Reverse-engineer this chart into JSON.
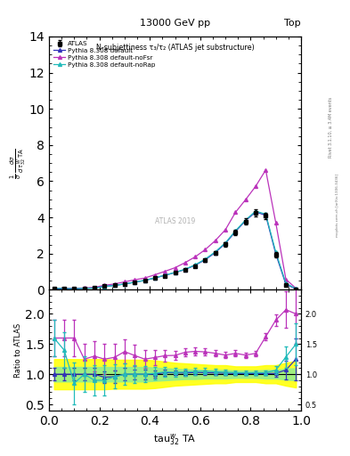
{
  "title_top": "13000 GeV pp",
  "title_right": "Top",
  "plot_title": "N-subjettiness τ₃/τ₂ (ATLAS jet substructure)",
  "xlabel": "tauᵂ₃₂ TA",
  "ylabel_ratio": "Ratio to ATLAS",
  "right_label": "Rivet 3.1.10, ≥ 3.4M events",
  "right_label2": "mcplots.cern.ch [arXiv:1306.3436]",
  "watermark": "ATLAS 2019",
  "x_values": [
    0.02,
    0.06,
    0.1,
    0.14,
    0.18,
    0.22,
    0.26,
    0.3,
    0.34,
    0.38,
    0.42,
    0.46,
    0.5,
    0.54,
    0.58,
    0.62,
    0.66,
    0.7,
    0.74,
    0.78,
    0.82,
    0.86,
    0.9,
    0.94,
    0.98
  ],
  "atlas_y": [
    0.05,
    0.05,
    0.05,
    0.08,
    0.1,
    0.2,
    0.25,
    0.32,
    0.42,
    0.52,
    0.65,
    0.78,
    0.93,
    1.1,
    1.32,
    1.62,
    2.02,
    2.52,
    3.18,
    3.78,
    4.25,
    4.08,
    1.95,
    0.28,
    0.04
  ],
  "atlas_yerr": [
    0.02,
    0.02,
    0.02,
    0.02,
    0.03,
    0.04,
    0.04,
    0.04,
    0.04,
    0.04,
    0.05,
    0.05,
    0.05,
    0.06,
    0.07,
    0.08,
    0.1,
    0.12,
    0.14,
    0.16,
    0.18,
    0.18,
    0.14,
    0.08,
    0.02
  ],
  "py_default_y": [
    0.05,
    0.05,
    0.05,
    0.08,
    0.1,
    0.19,
    0.24,
    0.32,
    0.42,
    0.52,
    0.65,
    0.8,
    0.95,
    1.12,
    1.36,
    1.66,
    2.06,
    2.56,
    3.22,
    3.82,
    4.3,
    4.12,
    1.98,
    0.3,
    0.05
  ],
  "py_noFsr_y": [
    0.08,
    0.08,
    0.08,
    0.1,
    0.13,
    0.25,
    0.32,
    0.44,
    0.55,
    0.65,
    0.83,
    1.02,
    1.22,
    1.5,
    1.82,
    2.22,
    2.72,
    3.32,
    4.28,
    4.98,
    5.72,
    6.62,
    3.7,
    0.58,
    0.08
  ],
  "py_noRap_y": [
    0.08,
    0.07,
    0.06,
    0.08,
    0.09,
    0.18,
    0.24,
    0.32,
    0.42,
    0.52,
    0.66,
    0.81,
    0.96,
    1.14,
    1.38,
    1.7,
    2.1,
    2.6,
    3.26,
    3.86,
    4.35,
    4.18,
    2.08,
    0.36,
    0.06
  ],
  "py_default_color": "#3333bb",
  "py_noFsr_color": "#bb33bb",
  "py_noRap_color": "#22bbbb",
  "atlas_color": "#000000",
  "ratio_default_y": [
    1.0,
    1.0,
    1.0,
    1.0,
    1.0,
    0.95,
    0.96,
    1.0,
    1.0,
    1.0,
    1.0,
    1.026,
    1.022,
    1.018,
    1.03,
    1.025,
    1.02,
    1.016,
    1.013,
    1.011,
    1.012,
    1.01,
    1.015,
    1.07,
    1.25
  ],
  "ratio_noFsr_y": [
    1.6,
    1.6,
    1.6,
    1.25,
    1.3,
    1.25,
    1.28,
    1.375,
    1.31,
    1.25,
    1.277,
    1.308,
    1.312,
    1.364,
    1.379,
    1.37,
    1.347,
    1.317,
    1.346,
    1.317,
    1.346,
    1.622,
    1.897,
    2.07,
    2.0
  ],
  "ratio_noRap_y": [
    1.6,
    1.4,
    0.85,
    1.0,
    0.9,
    0.9,
    0.96,
    1.0,
    1.0,
    1.0,
    1.015,
    1.038,
    1.032,
    1.036,
    1.045,
    1.049,
    1.04,
    1.032,
    1.025,
    1.021,
    1.024,
    1.024,
    1.067,
    1.286,
    1.5
  ],
  "ratio_default_yerr": [
    0.1,
    0.1,
    0.1,
    0.1,
    0.1,
    0.1,
    0.1,
    0.1,
    0.08,
    0.08,
    0.06,
    0.05,
    0.04,
    0.04,
    0.035,
    0.033,
    0.03,
    0.028,
    0.026,
    0.025,
    0.025,
    0.028,
    0.05,
    0.15,
    0.35
  ],
  "ratio_noFsr_yerr": [
    0.3,
    0.3,
    0.3,
    0.25,
    0.25,
    0.25,
    0.22,
    0.2,
    0.18,
    0.15,
    0.12,
    0.1,
    0.08,
    0.07,
    0.065,
    0.058,
    0.055,
    0.052,
    0.048,
    0.045,
    0.045,
    0.055,
    0.1,
    0.3,
    0.5
  ],
  "ratio_noRap_yerr": [
    0.3,
    0.3,
    0.35,
    0.3,
    0.25,
    0.25,
    0.2,
    0.18,
    0.15,
    0.13,
    0.1,
    0.08,
    0.07,
    0.062,
    0.058,
    0.052,
    0.05,
    0.046,
    0.042,
    0.04,
    0.04,
    0.042,
    0.065,
    0.18,
    0.35
  ],
  "green_band_lo": [
    0.88,
    0.88,
    0.88,
    0.88,
    0.88,
    0.88,
    0.88,
    0.88,
    0.88,
    0.88,
    0.89,
    0.9,
    0.91,
    0.92,
    0.92,
    0.93,
    0.93,
    0.93,
    0.94,
    0.94,
    0.94,
    0.93,
    0.93,
    0.91,
    0.9
  ],
  "green_band_hi": [
    1.12,
    1.12,
    1.12,
    1.12,
    1.12,
    1.12,
    1.12,
    1.12,
    1.12,
    1.12,
    1.11,
    1.1,
    1.09,
    1.08,
    1.08,
    1.07,
    1.07,
    1.07,
    1.06,
    1.06,
    1.06,
    1.07,
    1.07,
    1.09,
    1.1
  ],
  "yellow_band_lo": [
    0.75,
    0.75,
    0.75,
    0.75,
    0.75,
    0.75,
    0.76,
    0.76,
    0.76,
    0.76,
    0.77,
    0.79,
    0.81,
    0.82,
    0.83,
    0.84,
    0.85,
    0.85,
    0.87,
    0.87,
    0.87,
    0.85,
    0.85,
    0.81,
    0.78
  ],
  "yellow_band_hi": [
    1.25,
    1.25,
    1.25,
    1.25,
    1.25,
    1.25,
    1.24,
    1.24,
    1.24,
    1.24,
    1.23,
    1.21,
    1.19,
    1.18,
    1.17,
    1.16,
    1.15,
    1.15,
    1.13,
    1.13,
    1.13,
    1.15,
    1.15,
    1.19,
    1.22
  ],
  "main_ylim": [
    0,
    14
  ],
  "ratio_ylim": [
    0.4,
    2.4
  ],
  "xlim": [
    0.0,
    1.0
  ],
  "main_yticks": [
    0,
    2,
    4,
    6,
    8,
    10,
    12,
    14
  ],
  "ratio_yticks": [
    0.5,
    1.0,
    1.5,
    2.0
  ],
  "xticks": [
    0.0,
    0.2,
    0.4,
    0.6,
    0.8,
    1.0
  ]
}
